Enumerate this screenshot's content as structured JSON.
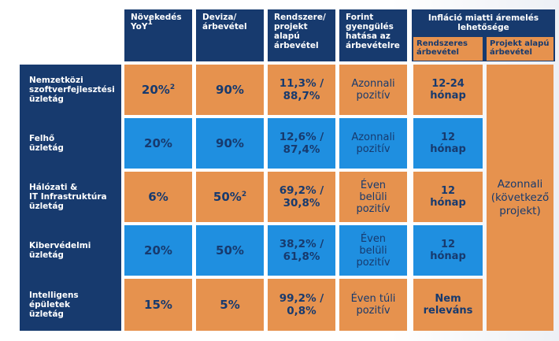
{
  "headers": {
    "growth": "Növekedés YoY",
    "growth_sup": "1",
    "fx": "Deviza/ árbevétel",
    "split": "Rendszere/ projekt alapú árbevétel",
    "forint": "Forint gyengülés hatása az árbevételre",
    "inflation": "Infláció miatti áremelés lehetősége",
    "inflation_sub1": "Rendszeres árbevétel",
    "inflation_sub2": "Projekt alapú árbevétel"
  },
  "rows": [
    {
      "label": "Nemzetközi szoftverfejlesztési üzletág",
      "growth": "20%",
      "growth_sup": "2",
      "fx": "90%",
      "fx_sup": "",
      "split": "11,3% /\n88,7%",
      "forint": "Azonnali\npozitív",
      "recurring": "12-24\nhónap"
    },
    {
      "label": "Felhő\nüzletág",
      "growth": "20%",
      "growth_sup": "",
      "fx": "90%",
      "fx_sup": "",
      "split": "12,6% /\n87,4%",
      "forint": "Azonnali\npozitív",
      "recurring": "12\nhónap"
    },
    {
      "label": "Hálózati &\nIT Infrastruktúra\nüzletág",
      "growth": "6%",
      "growth_sup": "",
      "fx": "50%",
      "fx_sup": "2",
      "split": "69,2% /\n30,8%",
      "forint": "Éven\nbelüli\npozitív",
      "recurring": "12\nhónap"
    },
    {
      "label": "Kibervédelmi\nüzletág",
      "growth": "20%",
      "growth_sup": "",
      "fx": "50%",
      "fx_sup": "",
      "split": "38,2% /\n61,8%",
      "forint": "Éven\nbelüli\npozitív",
      "recurring": "12\nhónap"
    },
    {
      "label": "Intelligens\népületek\nüzletág",
      "growth": "15%",
      "growth_sup": "",
      "fx": "5%",
      "fx_sup": "",
      "split": "99,2% /\n0,8%",
      "forint": "Éven túli\npozitív",
      "recurring": "Nem\nreleváns"
    }
  ],
  "project_cell": "Azonnali\n(következő\nprojekt)",
  "colors": {
    "navy": "#173a6e",
    "orange": "#e6924e",
    "blue": "#1f8fe0"
  }
}
